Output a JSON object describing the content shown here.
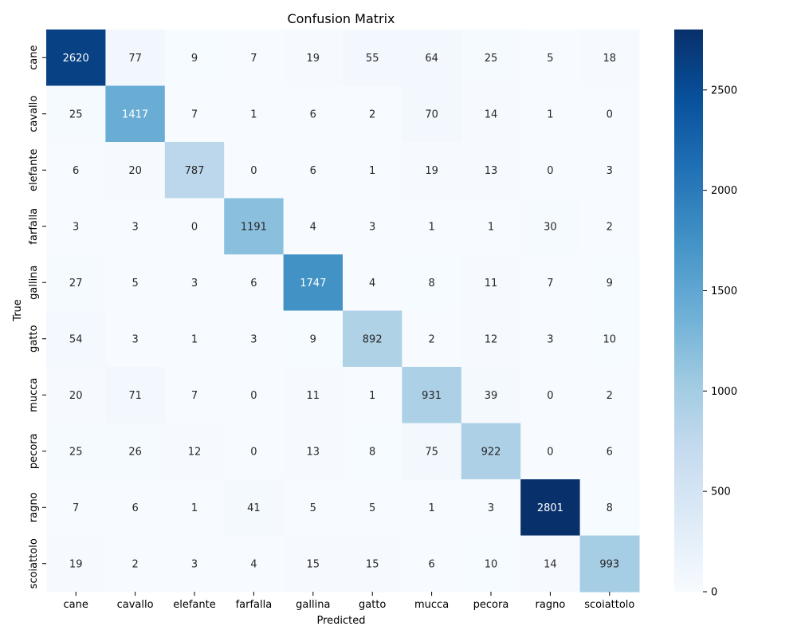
{
  "chart_data": {
    "type": "heatmap",
    "title": "Confusion Matrix",
    "xlabel": "Predicted",
    "ylabel": "True",
    "x_categories": [
      "cane",
      "cavallo",
      "elefante",
      "farfalla",
      "gallina",
      "gatto",
      "mucca",
      "pecora",
      "ragno",
      "scoiattolo"
    ],
    "y_categories": [
      "cane",
      "cavallo",
      "elefante",
      "farfalla",
      "gallina",
      "gatto",
      "mucca",
      "pecora",
      "ragno",
      "scoiattolo"
    ],
    "matrix": [
      [
        2620,
        77,
        9,
        7,
        19,
        55,
        64,
        25,
        5,
        18
      ],
      [
        25,
        1417,
        7,
        1,
        6,
        2,
        70,
        14,
        1,
        0
      ],
      [
        6,
        20,
        787,
        0,
        6,
        1,
        19,
        13,
        0,
        3
      ],
      [
        3,
        3,
        0,
        1191,
        4,
        3,
        1,
        1,
        30,
        2
      ],
      [
        27,
        5,
        3,
        6,
        1747,
        4,
        8,
        11,
        7,
        9
      ],
      [
        54,
        3,
        1,
        3,
        9,
        892,
        2,
        12,
        3,
        10
      ],
      [
        20,
        71,
        7,
        0,
        11,
        1,
        931,
        39,
        0,
        2
      ],
      [
        25,
        26,
        12,
        0,
        13,
        8,
        75,
        922,
        0,
        6
      ],
      [
        7,
        6,
        1,
        41,
        5,
        5,
        1,
        3,
        2801,
        8
      ],
      [
        19,
        2,
        3,
        4,
        15,
        15,
        6,
        10,
        14,
        993
      ]
    ],
    "colorbar": {
      "min": 0,
      "max": 2801,
      "ticks": [
        0,
        500,
        1000,
        1500,
        2000,
        2500
      ],
      "colormap": "Blues"
    }
  }
}
